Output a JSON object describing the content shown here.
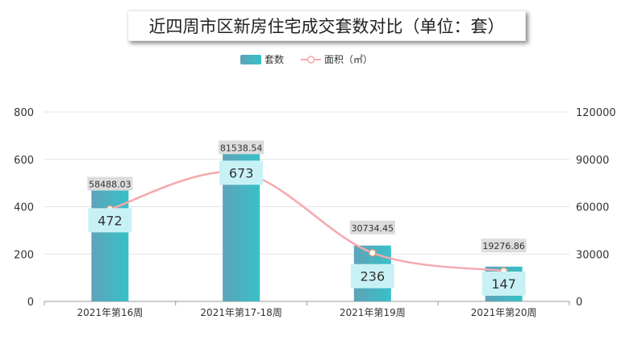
{
  "chart_data": {
    "type": "bar",
    "title": "近四周市区新房住宅成交套数对比（单位：套）",
    "categories": [
      "2021年第16周",
      "2021年第17-18周",
      "2021年第19周",
      "2021年第20周"
    ],
    "series": [
      {
        "name": "套数",
        "type": "bar",
        "axis": "left",
        "color": "#3fb6c6",
        "values": [
          472,
          673,
          236,
          147
        ]
      },
      {
        "name": "面积（㎡）",
        "type": "line",
        "axis": "right",
        "color": "#f4a9ae",
        "values": [
          58488.03,
          81538.54,
          30734.45,
          19276.86
        ]
      }
    ],
    "y_left": {
      "min": 0,
      "max": 800,
      "ticks": [
        0,
        200,
        400,
        600,
        800
      ]
    },
    "y_right": {
      "min": 0,
      "max": 120000,
      "ticks": [
        0,
        30000,
        60000,
        90000,
        120000
      ]
    },
    "line_labels": [
      "58488.03",
      "81538.54",
      "30734.45",
      "19276.86"
    ],
    "bar_labels": [
      "472",
      "673",
      "236",
      "147"
    ],
    "legend_position": "top-center",
    "grid": true
  }
}
